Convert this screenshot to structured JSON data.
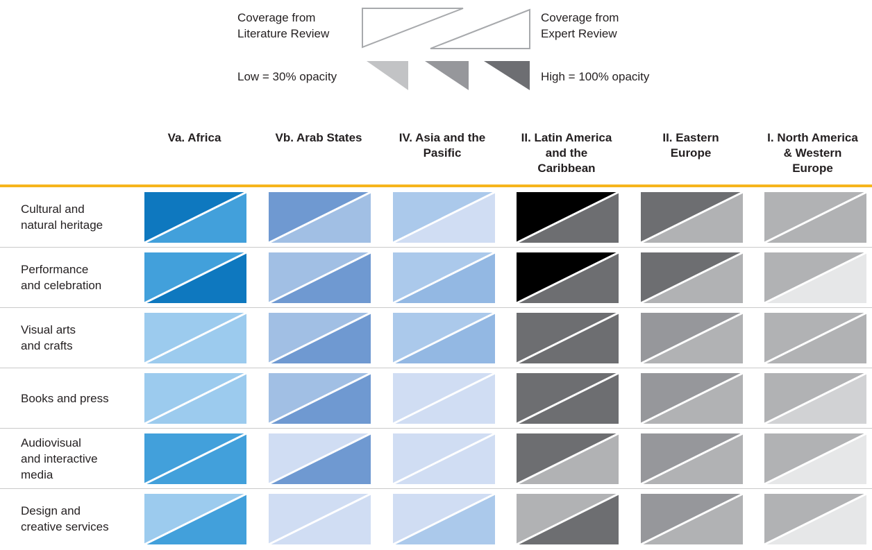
{
  "legend": {
    "literature_label": "Coverage from\nLiterature Review",
    "expert_label": "Coverage from\nExpert Review",
    "low_label": "Low = 30% opacity",
    "high_label": "High = 100% opacity",
    "swatch_colors": [
      "#c2c3c5",
      "#96979b",
      "#6d6e72"
    ]
  },
  "columns": [
    "Va. Africa",
    "Vb. Arab States",
    "IV. Asia and the\nPasific",
    "II. Latin America\nand the\nCaribbean",
    "II. Eastern\nEurope",
    "I. North America\n& Western\nEurope"
  ],
  "rows": [
    "Cultural and\nnatural heritage",
    "Performance\nand celebration",
    "Visual arts\nand crafts",
    "Books and press",
    "Audiovisual\nand interactive\nmedia",
    "Design and\ncreative services"
  ],
  "cells": [
    [
      [
        "#0e78bf",
        "#42a0db"
      ],
      [
        "#6f99d1",
        "#a1bfe4"
      ],
      [
        "#abc9eb",
        "#d0ddf3"
      ],
      [
        "#000000",
        "#6d6e71"
      ],
      [
        "#6d6e71",
        "#b1b2b4"
      ],
      [
        "#b1b2b4",
        "#b1b2b4"
      ]
    ],
    [
      [
        "#42a0db",
        "#0e78bf"
      ],
      [
        "#a1bfe4",
        "#6f99d1"
      ],
      [
        "#abc9eb",
        "#93b8e3"
      ],
      [
        "#000000",
        "#6d6e71"
      ],
      [
        "#6d6e71",
        "#b1b2b4"
      ],
      [
        "#b1b2b4",
        "#e6e7e8"
      ]
    ],
    [
      [
        "#9ccbee",
        "#9ccbee"
      ],
      [
        "#a1bfe4",
        "#6f99d1"
      ],
      [
        "#abc9eb",
        "#93b8e3"
      ],
      [
        "#6d6e71",
        "#6d6e71"
      ],
      [
        "#96979b",
        "#b1b2b4"
      ],
      [
        "#b1b2b4",
        "#b1b2b4"
      ]
    ],
    [
      [
        "#9ccbee",
        "#9ccbee"
      ],
      [
        "#a1bfe4",
        "#6f99d1"
      ],
      [
        "#d0ddf3",
        "#d0ddf3"
      ],
      [
        "#6d6e71",
        "#6d6e71"
      ],
      [
        "#96979b",
        "#b1b2b4"
      ],
      [
        "#b1b2b4",
        "#d1d2d4"
      ]
    ],
    [
      [
        "#42a0db",
        "#42a0db"
      ],
      [
        "#d0ddf3",
        "#6f99d1"
      ],
      [
        "#d0ddf3",
        "#d0ddf3"
      ],
      [
        "#6d6e71",
        "#b1b2b4"
      ],
      [
        "#96979b",
        "#b1b2b4"
      ],
      [
        "#b1b2b4",
        "#e6e7e8"
      ]
    ],
    [
      [
        "#9ccbee",
        "#42a0db"
      ],
      [
        "#d0ddf3",
        "#d0ddf3"
      ],
      [
        "#d0ddf3",
        "#abc9eb"
      ],
      [
        "#b1b2b4",
        "#6d6e71"
      ],
      [
        "#96979b",
        "#b1b2b4"
      ],
      [
        "#b1b2b4",
        "#e6e7e8"
      ]
    ]
  ]
}
